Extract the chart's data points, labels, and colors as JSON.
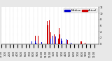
{
  "actual_color": "#cc0000",
  "median_color": "#0000cc",
  "background_color": "#e8e8e8",
  "plot_bg_color": "#ffffff",
  "ylim": [
    0,
    12
  ],
  "num_points": 1440,
  "legend_actual": "Actual",
  "legend_median": "Median",
  "axis_fontsize": 2.5,
  "legend_fontsize": 2.8,
  "yticks": [
    0,
    2,
    4,
    6,
    8,
    10,
    12
  ]
}
